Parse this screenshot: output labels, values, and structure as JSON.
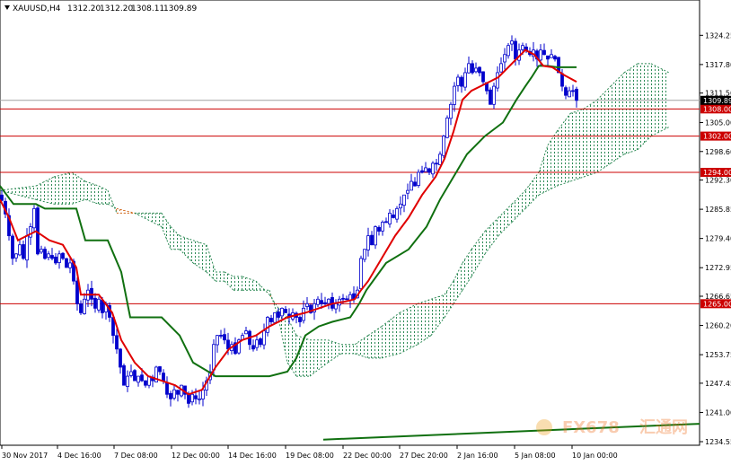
{
  "chart_data": {
    "type": "candlestick",
    "header": {
      "symbol": "XAUUSD,H4",
      "open": "1312.20",
      "high": "1312.20",
      "low": "1308.11",
      "close": "1309.89"
    },
    "y_axis": {
      "range": [
        1234.55,
        1331.25
      ],
      "ticks": [
        "1324.25",
        "1317.80",
        "1311.50",
        "1305.00",
        "1298.60",
        "1292.30",
        "1285.85",
        "1279.40",
        "1272.95",
        "1266.65",
        "1260.20",
        "1253.75",
        "1247.45",
        "1241.00",
        "1234.55"
      ],
      "current_price": "1309.89"
    },
    "x_axis": {
      "ticks": [
        "30 Nov 2017",
        "4 Dec 16:00",
        "7 Dec 08:00",
        "12 Dec 00:00",
        "14 Dec 16:00",
        "19 Dec 08:00",
        "22 Dec 00:00",
        "27 Dec 20:00",
        "2 Jan 16:00",
        "5 Jan 08:00",
        "10 Jan 00:00"
      ]
    },
    "horizontal_levels": [
      {
        "value": 1308.0,
        "label": "1308.00"
      },
      {
        "value": 1302.0,
        "label": "1302.00"
      },
      {
        "value": 1294.0,
        "label": "1294.00"
      },
      {
        "value": 1265.0,
        "label": "1265.00"
      }
    ],
    "colors": {
      "candle": "#0000cc",
      "tenkan": "#e00000",
      "kijun": "#107010",
      "cloud_bull": "#2e8b57",
      "cloud_bear": "#d2691e",
      "level": "#cc0000",
      "long_line": "#107010",
      "label_bg": "#cc0000"
    },
    "close_path": [
      [
        0,
        1289
      ],
      [
        5,
        1286
      ],
      [
        10,
        1280
      ],
      [
        14,
        1275
      ],
      [
        18,
        1276
      ],
      [
        22,
        1278
      ],
      [
        26,
        1275
      ],
      [
        30,
        1280
      ],
      [
        34,
        1282
      ],
      [
        38,
        1286
      ],
      [
        42,
        1276
      ],
      [
        46,
        1277
      ],
      [
        50,
        1275
      ],
      [
        54,
        1276
      ],
      [
        58,
        1275
      ],
      [
        62,
        1274
      ],
      [
        66,
        1276
      ],
      [
        70,
        1275
      ],
      [
        74,
        1273
      ],
      [
        78,
        1274
      ],
      [
        82,
        1270
      ],
      [
        86,
        1265
      ],
      [
        90,
        1263
      ],
      [
        94,
        1266
      ],
      [
        98,
        1268
      ],
      [
        102,
        1266
      ],
      [
        106,
        1264
      ],
      [
        110,
        1266
      ],
      [
        114,
        1263
      ],
      [
        118,
        1265
      ],
      [
        122,
        1262
      ],
      [
        126,
        1258
      ],
      [
        130,
        1255
      ],
      [
        134,
        1251
      ],
      [
        138,
        1247
      ],
      [
        142,
        1249
      ],
      [
        146,
        1250
      ],
      [
        150,
        1248
      ],
      [
        154,
        1249
      ],
      [
        158,
        1248
      ],
      [
        162,
        1247
      ],
      [
        166,
        1249
      ],
      [
        170,
        1248
      ],
      [
        174,
        1251
      ],
      [
        178,
        1250
      ],
      [
        182,
        1248
      ],
      [
        186,
        1245
      ],
      [
        190,
        1244
      ],
      [
        194,
        1246
      ],
      [
        198,
        1245
      ],
      [
        202,
        1247
      ],
      [
        206,
        1245
      ],
      [
        210,
        1243
      ],
      [
        214,
        1245
      ],
      [
        218,
        1244
      ],
      [
        222,
        1244
      ],
      [
        226,
        1246
      ],
      [
        230,
        1248
      ],
      [
        234,
        1250
      ],
      [
        238,
        1256
      ],
      [
        242,
        1258
      ],
      [
        246,
        1258
      ],
      [
        250,
        1257
      ],
      [
        254,
        1255
      ],
      [
        258,
        1256
      ],
      [
        262,
        1254
      ],
      [
        266,
        1257
      ],
      [
        270,
        1258
      ],
      [
        274,
        1259
      ],
      [
        278,
        1256
      ],
      [
        282,
        1255
      ],
      [
        286,
        1257
      ],
      [
        290,
        1256
      ],
      [
        294,
        1259
      ],
      [
        298,
        1262
      ],
      [
        302,
        1261
      ],
      [
        306,
        1263
      ],
      [
        310,
        1262
      ],
      [
        314,
        1264
      ],
      [
        318,
        1263
      ],
      [
        322,
        1262
      ],
      [
        326,
        1263
      ],
      [
        330,
        1262
      ],
      [
        334,
        1261
      ],
      [
        338,
        1264
      ],
      [
        342,
        1265
      ],
      [
        346,
        1263
      ],
      [
        350,
        1265
      ],
      [
        354,
        1266
      ],
      [
        358,
        1265
      ],
      [
        362,
        1265
      ],
      [
        366,
        1266
      ],
      [
        370,
        1264
      ],
      [
        374,
        1265
      ],
      [
        378,
        1266
      ],
      [
        382,
        1266
      ],
      [
        386,
        1266
      ],
      [
        390,
        1267
      ],
      [
        394,
        1266
      ],
      [
        398,
        1268
      ],
      [
        402,
        1275
      ],
      [
        406,
        1277
      ],
      [
        410,
        1280
      ],
      [
        414,
        1278
      ],
      [
        418,
        1282
      ],
      [
        422,
        1281
      ],
      [
        426,
        1283
      ],
      [
        430,
        1283
      ],
      [
        434,
        1285
      ],
      [
        438,
        1284
      ],
      [
        442,
        1286
      ],
      [
        446,
        1287
      ],
      [
        450,
        1289
      ],
      [
        454,
        1290
      ],
      [
        458,
        1292
      ],
      [
        462,
        1291
      ],
      [
        466,
        1294
      ],
      [
        470,
        1294
      ],
      [
        474,
        1295
      ],
      [
        478,
        1294
      ],
      [
        482,
        1296
      ],
      [
        486,
        1296
      ],
      [
        490,
        1298
      ],
      [
        494,
        1302
      ],
      [
        498,
        1306
      ],
      [
        502,
        1309
      ],
      [
        506,
        1313
      ],
      [
        510,
        1315
      ],
      [
        514,
        1313
      ],
      [
        518,
        1316
      ],
      [
        522,
        1318
      ],
      [
        526,
        1316
      ],
      [
        530,
        1317
      ],
      [
        534,
        1316
      ],
      [
        538,
        1314
      ],
      [
        542,
        1312
      ],
      [
        546,
        1309
      ],
      [
        550,
        1313
      ],
      [
        554,
        1316
      ],
      [
        558,
        1318
      ],
      [
        562,
        1320
      ],
      [
        566,
        1322
      ],
      [
        570,
        1323
      ],
      [
        574,
        1319
      ],
      [
        578,
        1321
      ],
      [
        582,
        1322
      ],
      [
        586,
        1321
      ],
      [
        590,
        1320
      ],
      [
        594,
        1321
      ],
      [
        598,
        1319
      ],
      [
        602,
        1321
      ],
      [
        606,
        1320
      ],
      [
        610,
        1319
      ],
      [
        614,
        1320
      ],
      [
        618,
        1319
      ],
      [
        622,
        1316
      ],
      [
        626,
        1313
      ],
      [
        630,
        1311
      ],
      [
        634,
        1312
      ],
      [
        638,
        1312
      ],
      [
        642,
        1309.89
      ]
    ],
    "tenkan_path": [
      [
        0,
        1288
      ],
      [
        10,
        1284
      ],
      [
        20,
        1279
      ],
      [
        30,
        1280
      ],
      [
        40,
        1281
      ],
      [
        55,
        1279
      ],
      [
        70,
        1278
      ],
      [
        85,
        1273
      ],
      [
        90,
        1267
      ],
      [
        110,
        1267
      ],
      [
        125,
        1263
      ],
      [
        135,
        1257
      ],
      [
        150,
        1252
      ],
      [
        165,
        1249
      ],
      [
        180,
        1248
      ],
      [
        195,
        1247
      ],
      [
        210,
        1245
      ],
      [
        225,
        1246
      ],
      [
        240,
        1251
      ],
      [
        255,
        1255
      ],
      [
        270,
        1257
      ],
      [
        285,
        1258
      ],
      [
        300,
        1260
      ],
      [
        320,
        1262
      ],
      [
        340,
        1263
      ],
      [
        355,
        1264
      ],
      [
        370,
        1265
      ],
      [
        385,
        1265.5
      ],
      [
        395,
        1266
      ],
      [
        402,
        1268
      ],
      [
        410,
        1270
      ],
      [
        425,
        1275
      ],
      [
        440,
        1280
      ],
      [
        455,
        1284
      ],
      [
        470,
        1289
      ],
      [
        485,
        1293
      ],
      [
        495,
        1297
      ],
      [
        505,
        1303
      ],
      [
        515,
        1310
      ],
      [
        525,
        1312
      ],
      [
        535,
        1313
      ],
      [
        545,
        1314
      ],
      [
        555,
        1315
      ],
      [
        565,
        1317
      ],
      [
        575,
        1319
      ],
      [
        585,
        1321
      ],
      [
        595,
        1320
      ],
      [
        605,
        1317.5
      ],
      [
        615,
        1317.2
      ],
      [
        628,
        1315.5
      ],
      [
        642,
        1314
      ]
    ],
    "kijun_path": [
      [
        0,
        1291
      ],
      [
        15,
        1287
      ],
      [
        40,
        1287
      ],
      [
        50,
        1286
      ],
      [
        85,
        1286
      ],
      [
        95,
        1279
      ],
      [
        120,
        1279
      ],
      [
        135,
        1272
      ],
      [
        145,
        1262
      ],
      [
        180,
        1262
      ],
      [
        200,
        1258
      ],
      [
        215,
        1252
      ],
      [
        232,
        1250
      ],
      [
        240,
        1249
      ],
      [
        300,
        1249
      ],
      [
        320,
        1250
      ],
      [
        330,
        1253
      ],
      [
        340,
        1258
      ],
      [
        355,
        1260
      ],
      [
        370,
        1261
      ],
      [
        390,
        1262
      ],
      [
        400,
        1265
      ],
      [
        408,
        1268
      ],
      [
        430,
        1274
      ],
      [
        455,
        1277
      ],
      [
        475,
        1282
      ],
      [
        490,
        1288
      ],
      [
        505,
        1293
      ],
      [
        520,
        1298
      ],
      [
        540,
        1302
      ],
      [
        560,
        1305
      ],
      [
        575,
        1310
      ],
      [
        585,
        1313
      ],
      [
        592,
        1315
      ],
      [
        600,
        1317.5
      ],
      [
        610,
        1317.5
      ],
      [
        620,
        1317.2
      ],
      [
        642,
        1317.2
      ]
    ],
    "span_a_path": [
      [
        0,
        1290
      ],
      [
        40,
        1291
      ],
      [
        60,
        1293
      ],
      [
        80,
        1294
      ],
      [
        95,
        1292
      ],
      [
        110,
        1291
      ],
      [
        120,
        1290
      ],
      [
        130,
        1285
      ],
      [
        150,
        1285
      ],
      [
        180,
        1285
      ],
      [
        190,
        1282
      ],
      [
        200,
        1280
      ],
      [
        215,
        1279
      ],
      [
        230,
        1278
      ],
      [
        240,
        1272
      ],
      [
        250,
        1272
      ],
      [
        260,
        1271
      ],
      [
        270,
        1271
      ],
      [
        285,
        1270
      ],
      [
        300,
        1267
      ],
      [
        310,
        1264
      ],
      [
        320,
        1262
      ],
      [
        330,
        1258
      ],
      [
        345,
        1257
      ],
      [
        365,
        1257
      ],
      [
        380,
        1256
      ],
      [
        395,
        1256
      ],
      [
        410,
        1258
      ],
      [
        425,
        1260
      ],
      [
        445,
        1263
      ],
      [
        465,
        1265
      ],
      [
        480,
        1266
      ],
      [
        495,
        1267
      ],
      [
        505,
        1270
      ],
      [
        515,
        1274
      ],
      [
        525,
        1277
      ],
      [
        540,
        1281
      ],
      [
        555,
        1284
      ],
      [
        570,
        1287
      ],
      [
        585,
        1290
      ],
      [
        600,
        1294
      ],
      [
        610,
        1300
      ],
      [
        620,
        1303
      ],
      [
        635,
        1307
      ],
      [
        650,
        1308
      ],
      [
        665,
        1310
      ],
      [
        680,
        1313
      ],
      [
        695,
        1316
      ],
      [
        710,
        1318
      ],
      [
        725,
        1318
      ],
      [
        745,
        1316
      ]
    ],
    "span_b_path": [
      [
        0,
        1290
      ],
      [
        40,
        1288
      ],
      [
        60,
        1287
      ],
      [
        80,
        1287
      ],
      [
        95,
        1288
      ],
      [
        110,
        1287
      ],
      [
        120,
        1287
      ],
      [
        130,
        1286
      ],
      [
        150,
        1285
      ],
      [
        180,
        1282
      ],
      [
        190,
        1277
      ],
      [
        200,
        1277
      ],
      [
        215,
        1274
      ],
      [
        230,
        1272
      ],
      [
        240,
        1270
      ],
      [
        250,
        1270
      ],
      [
        260,
        1268
      ],
      [
        270,
        1268
      ],
      [
        285,
        1268
      ],
      [
        300,
        1268
      ],
      [
        310,
        1262
      ],
      [
        320,
        1252
      ],
      [
        330,
        1249
      ],
      [
        345,
        1249
      ],
      [
        365,
        1252
      ],
      [
        380,
        1254
      ],
      [
        395,
        1254
      ],
      [
        410,
        1253
      ],
      [
        425,
        1253
      ],
      [
        445,
        1254
      ],
      [
        465,
        1256
      ],
      [
        480,
        1258
      ],
      [
        495,
        1262
      ],
      [
        505,
        1265
      ],
      [
        515,
        1268
      ],
      [
        525,
        1271
      ],
      [
        540,
        1276
      ],
      [
        555,
        1280
      ],
      [
        570,
        1283
      ],
      [
        585,
        1286
      ],
      [
        600,
        1289
      ],
      [
        610,
        1290
      ],
      [
        620,
        1291
      ],
      [
        635,
        1292
      ],
      [
        650,
        1293
      ],
      [
        665,
        1294
      ],
      [
        680,
        1296
      ],
      [
        695,
        1298
      ],
      [
        710,
        1299
      ],
      [
        725,
        1302
      ],
      [
        745,
        1304
      ]
    ],
    "long_line_path": [
      [
        360,
        1235
      ],
      [
        779,
        1238.5
      ]
    ]
  },
  "watermark": {
    "brand": "FX678",
    "brand_cn": "汇通网"
  }
}
